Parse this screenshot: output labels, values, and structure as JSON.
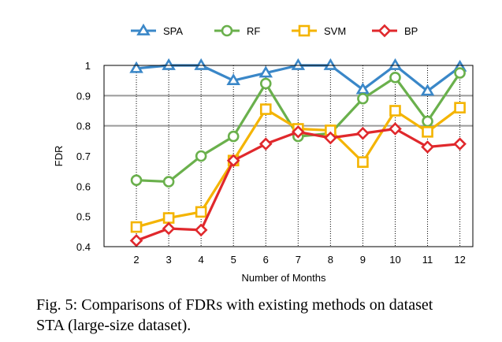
{
  "chart_data": {
    "type": "line",
    "title": "",
    "xlabel": "Number of Months",
    "ylabel": "FDR",
    "x": [
      2,
      3,
      4,
      5,
      6,
      7,
      8,
      9,
      10,
      11,
      12
    ],
    "xlim": [
      1,
      12
    ],
    "ylim": [
      0.4,
      1.0
    ],
    "yticks": [
      "0.4",
      "0.5",
      "0.6",
      "0.7",
      "0.8",
      "0.9",
      "1"
    ],
    "xticks": [
      "2",
      "3",
      "4",
      "5",
      "6",
      "7",
      "8",
      "9",
      "10",
      "11",
      "12"
    ],
    "grid": "horizontal solid at 0.9 and 0.8, dotted vertical at each month",
    "legend_position": "top",
    "series": [
      {
        "name": "SPA",
        "color": "#3a87c8",
        "marker": "triangle",
        "values": [
          0.99,
          1.0,
          1.0,
          0.95,
          0.975,
          1.0,
          1.0,
          0.92,
          1.0,
          0.915,
          0.995
        ]
      },
      {
        "name": "RF",
        "color": "#6ab04c",
        "marker": "circle",
        "values": [
          0.62,
          0.615,
          0.7,
          0.765,
          0.94,
          0.765,
          0.775,
          0.89,
          0.96,
          0.815,
          0.975
        ]
      },
      {
        "name": "SVM",
        "color": "#f4b400",
        "marker": "square",
        "values": [
          0.465,
          0.495,
          0.515,
          0.685,
          0.855,
          0.79,
          0.785,
          0.68,
          0.85,
          0.78,
          0.86
        ]
      },
      {
        "name": "BP",
        "color": "#e0282c",
        "marker": "diamond",
        "values": [
          0.42,
          0.46,
          0.455,
          0.685,
          0.74,
          0.78,
          0.76,
          0.775,
          0.79,
          0.73,
          0.74
        ]
      }
    ]
  },
  "caption": {
    "line1": "Fig. 5: Comparisons of FDRs with existing methods on dataset",
    "line2": "STA (large-size dataset)."
  }
}
